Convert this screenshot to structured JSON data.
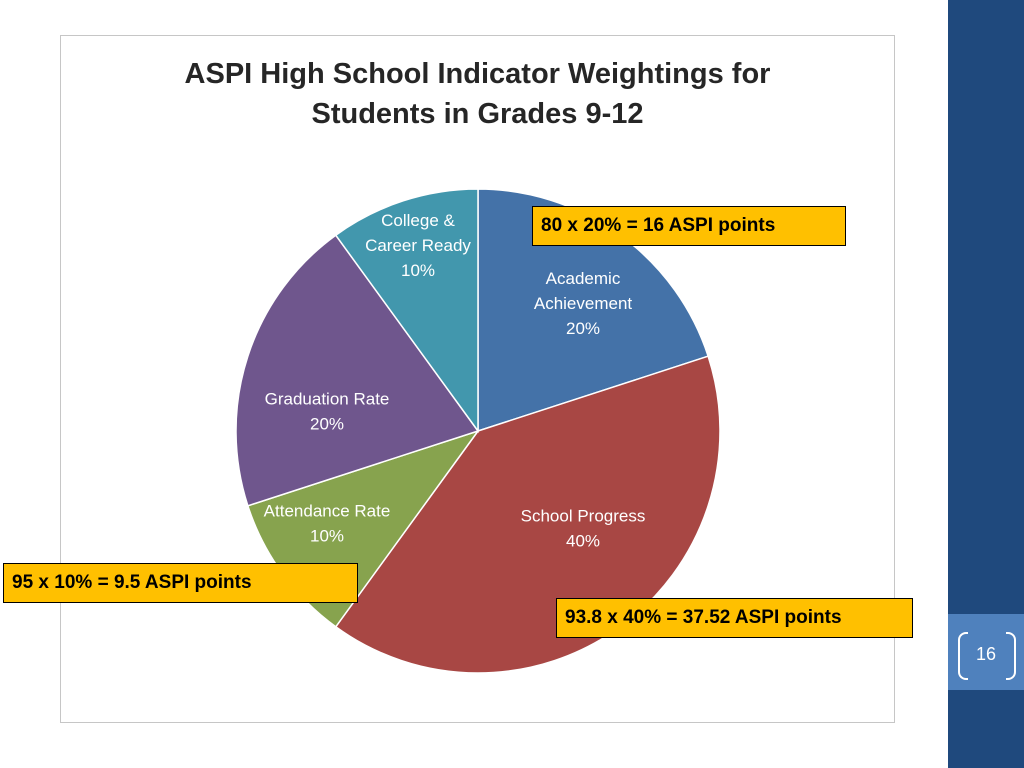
{
  "chart_data": {
    "type": "pie",
    "title": "ASPI High School Indicator Weightings for Students in Grades 9-12",
    "title_lines": [
      "ASPI High School Indicator Weightings for",
      "Students in Grades 9-12"
    ],
    "slices": [
      {
        "label_lines": [
          "Academic",
          "Achievement"
        ],
        "label": "Academic Achievement",
        "value": 20,
        "value_label": "20%",
        "color": "#4472a8"
      },
      {
        "label_lines": [
          "School Progress"
        ],
        "label": "School Progress",
        "value": 40,
        "value_label": "40%",
        "color": "#a84744"
      },
      {
        "label_lines": [
          "Attendance Rate"
        ],
        "label": "Attendance Rate",
        "value": 10,
        "value_label": "10%",
        "color": "#87a34e"
      },
      {
        "label_lines": [
          "Graduation Rate"
        ],
        "label": "Graduation Rate",
        "value": 20,
        "value_label": "20%",
        "color": "#6f568d"
      },
      {
        "label_lines": [
          "College &",
          "Career Ready"
        ],
        "label": "College & Career Ready",
        "value": 10,
        "value_label": "10%",
        "color": "#4297ad"
      }
    ]
  },
  "callouts": {
    "academic": "80 x 20% = 16 ASPI points",
    "attendance": "95 x 10% = 9.5 ASPI points",
    "progress": "93.8 x 40% = 37.52 ASPI points"
  },
  "slide": {
    "page_number": "16",
    "bar_color": "#1f497d",
    "accent_color": "#4f81bd",
    "callout_color": "#ffc000"
  }
}
